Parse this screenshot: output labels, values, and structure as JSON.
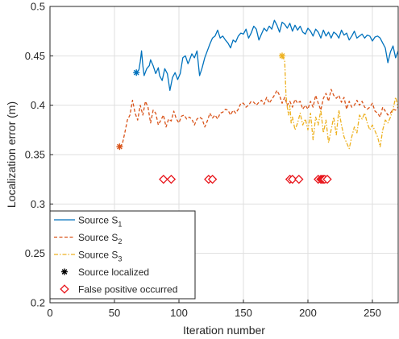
{
  "chart_data": {
    "type": "line",
    "xlabel": "Iteration number",
    "ylabel": "Localization error (m)",
    "xlim": [
      0,
      270
    ],
    "ylim": [
      0.2,
      0.5
    ],
    "xticks": [
      0,
      50,
      100,
      150,
      200,
      250
    ],
    "yticks": [
      0.2,
      0.25,
      0.3,
      0.35,
      0.4,
      0.45,
      0.5
    ],
    "grid": true,
    "legend_position": "bottom-left",
    "series": [
      {
        "name": "Source S",
        "subscript": "1",
        "color": "#0072BD",
        "style": "solid",
        "x": [
          67,
          69,
          70,
          71,
          72,
          73,
          75,
          77,
          78,
          80,
          82,
          84,
          85,
          87,
          89,
          91,
          93,
          95,
          97,
          99,
          101,
          103,
          105,
          107,
          108,
          110,
          112,
          114,
          116,
          118,
          120,
          122,
          124,
          126,
          128,
          130,
          132,
          134,
          136,
          138,
          140,
          142,
          144,
          146,
          148,
          150,
          152,
          154,
          156,
          158,
          160,
          162,
          164,
          166,
          168,
          170,
          172,
          174,
          176,
          178,
          180,
          182,
          184,
          186,
          188,
          190,
          192,
          194,
          196,
          198,
          200,
          202,
          204,
          206,
          208,
          210,
          212,
          214,
          216,
          218,
          220,
          222,
          224,
          226,
          228,
          230,
          232,
          234,
          236,
          238,
          240,
          242,
          244,
          246,
          248,
          250,
          252,
          254,
          256,
          258,
          260,
          262,
          264,
          266,
          268,
          270
        ],
        "y": [
          0.433,
          0.436,
          0.444,
          0.455,
          0.44,
          0.43,
          0.437,
          0.44,
          0.446,
          0.44,
          0.432,
          0.438,
          0.43,
          0.425,
          0.437,
          0.432,
          0.415,
          0.428,
          0.433,
          0.426,
          0.432,
          0.448,
          0.45,
          0.442,
          0.445,
          0.452,
          0.448,
          0.455,
          0.43,
          0.438,
          0.448,
          0.455,
          0.462,
          0.468,
          0.47,
          0.476,
          0.468,
          0.47,
          0.466,
          0.463,
          0.458,
          0.466,
          0.464,
          0.47,
          0.473,
          0.472,
          0.477,
          0.468,
          0.473,
          0.48,
          0.477,
          0.466,
          0.472,
          0.478,
          0.475,
          0.48,
          0.477,
          0.486,
          0.481,
          0.474,
          0.484,
          0.482,
          0.478,
          0.483,
          0.475,
          0.481,
          0.476,
          0.48,
          0.474,
          0.472,
          0.478,
          0.475,
          0.47,
          0.477,
          0.474,
          0.468,
          0.476,
          0.47,
          0.474,
          0.468,
          0.474,
          0.472,
          0.468,
          0.476,
          0.471,
          0.473,
          0.466,
          0.47,
          0.475,
          0.468,
          0.47,
          0.472,
          0.468,
          0.471,
          0.47,
          0.465,
          0.469,
          0.47,
          0.468,
          0.463,
          0.458,
          0.443,
          0.454,
          0.46,
          0.448,
          0.455
        ]
      },
      {
        "name": "Source S",
        "subscript": "2",
        "color": "#D95319",
        "style": "dashed",
        "x": [
          54,
          56,
          58,
          60,
          62,
          64,
          66,
          68,
          70,
          72,
          74,
          76,
          78,
          80,
          82,
          84,
          86,
          88,
          90,
          92,
          94,
          96,
          98,
          100,
          102,
          104,
          106,
          108,
          110,
          112,
          114,
          116,
          118,
          120,
          122,
          124,
          126,
          128,
          130,
          132,
          134,
          136,
          138,
          140,
          142,
          144,
          146,
          148,
          150,
          152,
          154,
          156,
          158,
          160,
          162,
          164,
          166,
          168,
          170,
          172,
          174,
          176,
          178,
          180,
          182,
          184,
          186,
          188,
          190,
          192,
          194,
          196,
          198,
          200,
          202,
          204,
          206,
          208,
          210,
          212,
          214,
          216,
          218,
          220,
          222,
          224,
          226,
          228,
          230,
          232,
          234,
          236,
          238,
          240,
          242,
          244,
          246,
          248,
          250,
          252,
          254,
          256,
          258,
          260,
          262,
          264,
          266,
          268,
          270
        ],
        "y": [
          0.358,
          0.36,
          0.372,
          0.385,
          0.39,
          0.405,
          0.392,
          0.385,
          0.4,
          0.39,
          0.404,
          0.398,
          0.382,
          0.395,
          0.392,
          0.38,
          0.385,
          0.39,
          0.378,
          0.386,
          0.384,
          0.394,
          0.386,
          0.382,
          0.389,
          0.39,
          0.386,
          0.388,
          0.386,
          0.38,
          0.386,
          0.388,
          0.386,
          0.378,
          0.384,
          0.392,
          0.387,
          0.39,
          0.386,
          0.392,
          0.393,
          0.396,
          0.395,
          0.39,
          0.395,
          0.392,
          0.396,
          0.402,
          0.402,
          0.398,
          0.4,
          0.404,
          0.403,
          0.4,
          0.403,
          0.405,
          0.401,
          0.408,
          0.402,
          0.406,
          0.41,
          0.415,
          0.41,
          0.402,
          0.408,
          0.4,
          0.404,
          0.398,
          0.406,
          0.402,
          0.404,
          0.396,
          0.4,
          0.396,
          0.404,
          0.398,
          0.41,
          0.402,
          0.395,
          0.407,
          0.412,
          0.404,
          0.416,
          0.41,
          0.407,
          0.41,
          0.403,
          0.408,
          0.396,
          0.404,
          0.398,
          0.4,
          0.405,
          0.4,
          0.404,
          0.398,
          0.396,
          0.398,
          0.402,
          0.394,
          0.392,
          0.388,
          0.398,
          0.394,
          0.39,
          0.392,
          0.396,
          0.395,
          0.398
        ]
      },
      {
        "name": "Source S",
        "subscript": "3",
        "color": "#EDB120",
        "style": "dashdot",
        "x": [
          180,
          182,
          183,
          184,
          185,
          186,
          187,
          188,
          190,
          192,
          194,
          196,
          198,
          200,
          202,
          204,
          206,
          208,
          210,
          212,
          214,
          216,
          218,
          220,
          222,
          224,
          226,
          228,
          230,
          232,
          234,
          236,
          238,
          240,
          242,
          244,
          246,
          248,
          250,
          252,
          254,
          256,
          258,
          260,
          262,
          264,
          266,
          268,
          270
        ],
        "y": [
          0.45,
          0.445,
          0.41,
          0.398,
          0.39,
          0.4,
          0.382,
          0.388,
          0.375,
          0.382,
          0.392,
          0.38,
          0.386,
          0.375,
          0.392,
          0.365,
          0.388,
          0.38,
          0.395,
          0.372,
          0.385,
          0.362,
          0.375,
          0.388,
          0.37,
          0.395,
          0.38,
          0.368,
          0.362,
          0.356,
          0.368,
          0.378,
          0.372,
          0.39,
          0.386,
          0.392,
          0.382,
          0.375,
          0.38,
          0.374,
          0.368,
          0.358,
          0.375,
          0.385,
          0.382,
          0.388,
          0.396,
          0.408,
          0.398
        ]
      }
    ],
    "localized_points": [
      {
        "x": 67,
        "y": 0.433,
        "color": "#0072BD"
      },
      {
        "x": 54,
        "y": 0.358,
        "color": "#D95319"
      },
      {
        "x": 180,
        "y": 0.45,
        "color": "#EDB120"
      }
    ],
    "false_positives": {
      "y": 0.325,
      "color": "#E8151B",
      "x": [
        88,
        94,
        123,
        126,
        186,
        188,
        193,
        208,
        210,
        211,
        212,
        213,
        215
      ]
    },
    "legend": {
      "entries": [
        {
          "label": "Source S",
          "sub": "1"
        },
        {
          "label": "Source S",
          "sub": "2"
        },
        {
          "label": "Source S",
          "sub": "3"
        },
        {
          "label": "Source localized",
          "sub": ""
        },
        {
          "label": "False positive occurred",
          "sub": ""
        }
      ]
    }
  }
}
